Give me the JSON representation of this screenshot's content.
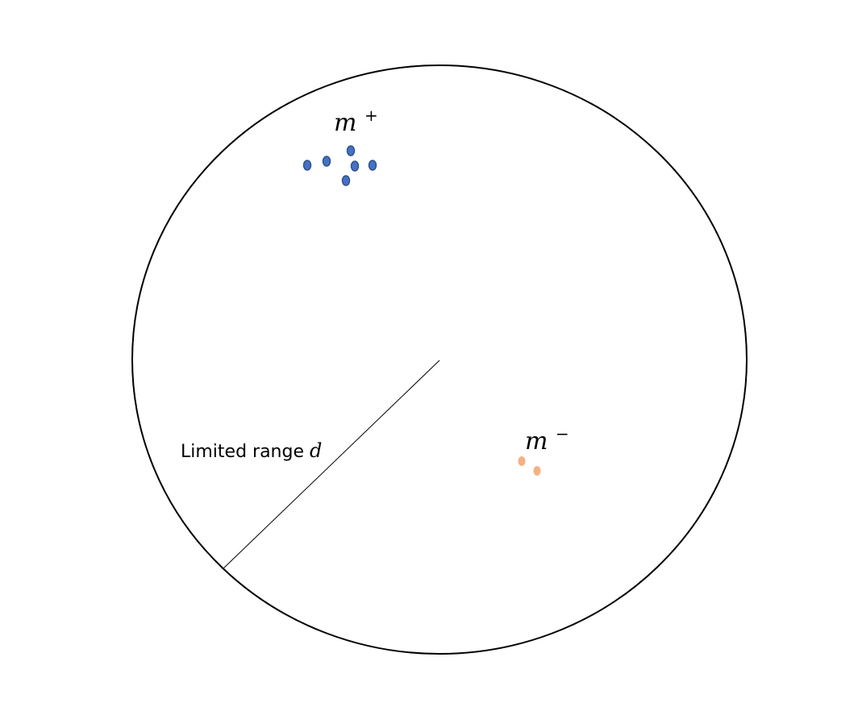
{
  "labels": {
    "positive_group": "m",
    "positive_sup": "+",
    "negative_group": "m",
    "negative_sup": "−",
    "range_text": "Limited range ",
    "range_var": "d"
  },
  "colors": {
    "circle": "#000000",
    "positive_fill": "#4472c4",
    "positive_stroke": "#2f528f",
    "negative_fill": "#f4b183"
  }
}
